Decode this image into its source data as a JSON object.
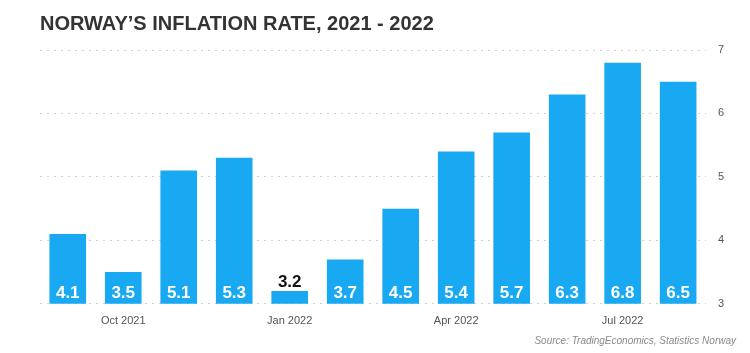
{
  "chart_data": {
    "type": "bar",
    "title": "NORWAY’S INFLATION RATE, 2021 - 2022",
    "source": "Source: TradingEconomics, Statistics Norway",
    "categories": [
      null,
      "Oct 2021",
      null,
      null,
      "Jan 2022",
      null,
      null,
      "Apr 2022",
      null,
      null,
      "Jul 2022",
      null
    ],
    "values": [
      4.1,
      3.5,
      5.1,
      5.3,
      3.2,
      3.7,
      4.5,
      5.4,
      5.7,
      6.3,
      6.8,
      6.5
    ],
    "color": "#18a9f2",
    "ylim": [
      3,
      7
    ],
    "yticks": [
      3,
      4,
      5,
      6,
      7
    ],
    "grid": true,
    "data_labels": true
  }
}
